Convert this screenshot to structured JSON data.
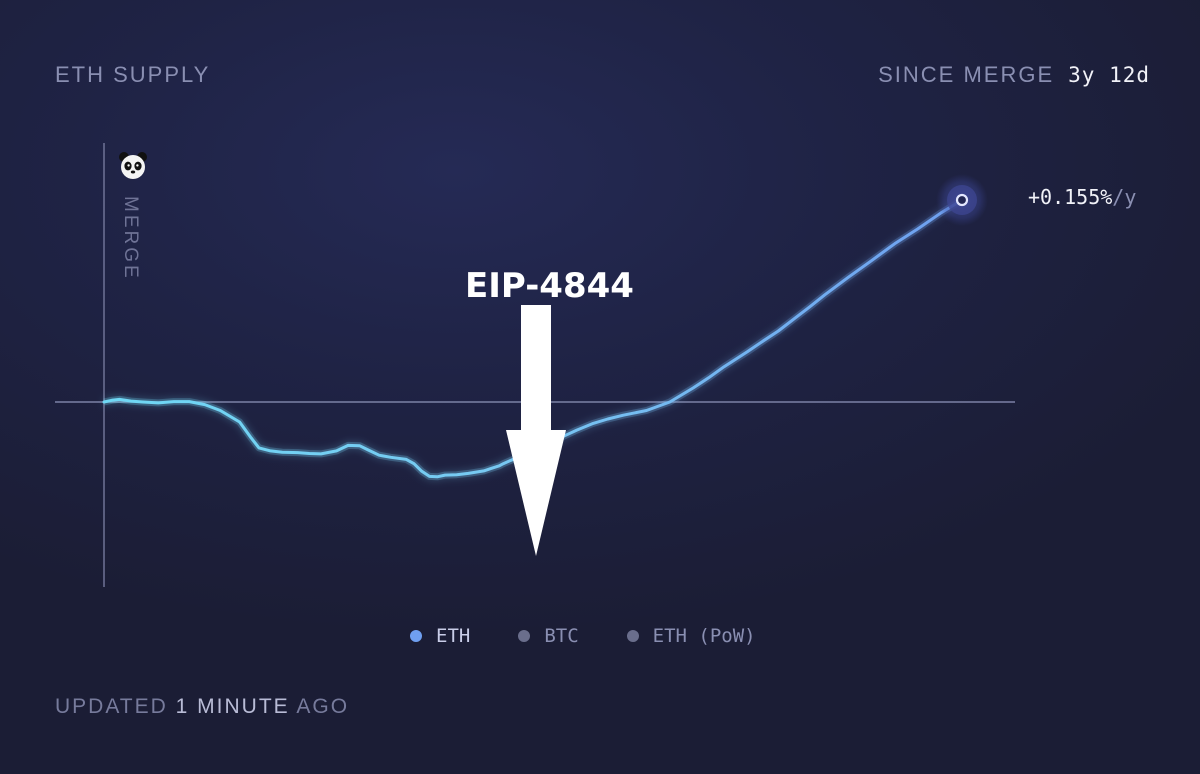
{
  "header": {
    "title": "ETH SUPPLY",
    "since_label": "SINCE MERGE",
    "since_value": "3y 12d"
  },
  "rate": {
    "value": "+0.155%",
    "unit": "/y"
  },
  "merge_label": "MERGE",
  "annotation": {
    "text": "EIP-4844"
  },
  "legend": [
    {
      "label": "ETH",
      "color": "#6f9ff0",
      "active": true
    },
    {
      "label": "BTC",
      "color": "#6a6e8c",
      "active": false
    },
    {
      "label": "ETH (PoW)",
      "color": "#6a6e8c",
      "active": false
    }
  ],
  "footer": {
    "prefix": "UPDATED",
    "count": "1",
    "unit": "MINUTE",
    "suffix": "AGO"
  },
  "colors": {
    "line_start": "#6fd8f4",
    "line_end": "#6e9ff0",
    "baseline": "#7c81a6",
    "axis": "#6f7396"
  },
  "chart_data": {
    "type": "line",
    "xlabel": "",
    "ylabel": "",
    "x_unit": "days since merge",
    "y_unit": "supply change (%)",
    "xlim": [
      0,
      1107
    ],
    "ylim": [
      -0.37,
      0.48
    ],
    "baseline": 0,
    "series": [
      {
        "name": "ETH",
        "x": [
          0,
          10,
          20,
          35,
          50,
          70,
          90,
          110,
          130,
          150,
          175,
          190,
          200,
          215,
          230,
          250,
          265,
          280,
          300,
          315,
          330,
          340,
          355,
          370,
          390,
          400,
          410,
          420,
          430,
          440,
          455,
          470,
          490,
          500,
          510,
          515,
          525,
          535,
          550,
          570,
          590,
          610,
          630,
          650,
          670,
          700,
          730,
          760,
          780,
          800,
          830,
          850,
          870,
          890,
          910,
          930,
          960,
          990,
          1020,
          1050,
          1080,
          1107
        ],
        "y": [
          0.0,
          0.004,
          0.006,
          0.002,
          0.0,
          -0.002,
          0.001,
          0.001,
          -0.006,
          -0.02,
          -0.047,
          -0.085,
          -0.108,
          -0.115,
          -0.118,
          -0.119,
          -0.121,
          -0.122,
          -0.115,
          -0.102,
          -0.103,
          -0.112,
          -0.125,
          -0.13,
          -0.135,
          -0.145,
          -0.163,
          -0.175,
          -0.176,
          -0.172,
          -0.171,
          -0.168,
          -0.162,
          -0.156,
          -0.15,
          -0.145,
          -0.137,
          -0.13,
          -0.118,
          -0.1,
          -0.083,
          -0.066,
          -0.051,
          -0.04,
          -0.031,
          -0.02,
          0.0,
          0.033,
          0.057,
          0.083,
          0.118,
          0.143,
          0.167,
          0.195,
          0.223,
          0.252,
          0.293,
          0.332,
          0.372,
          0.407,
          0.445,
          0.475
        ]
      }
    ],
    "annotations": [
      {
        "text": "EIP-4844",
        "x": 515
      }
    ],
    "end_label": "+0.155%/y"
  }
}
